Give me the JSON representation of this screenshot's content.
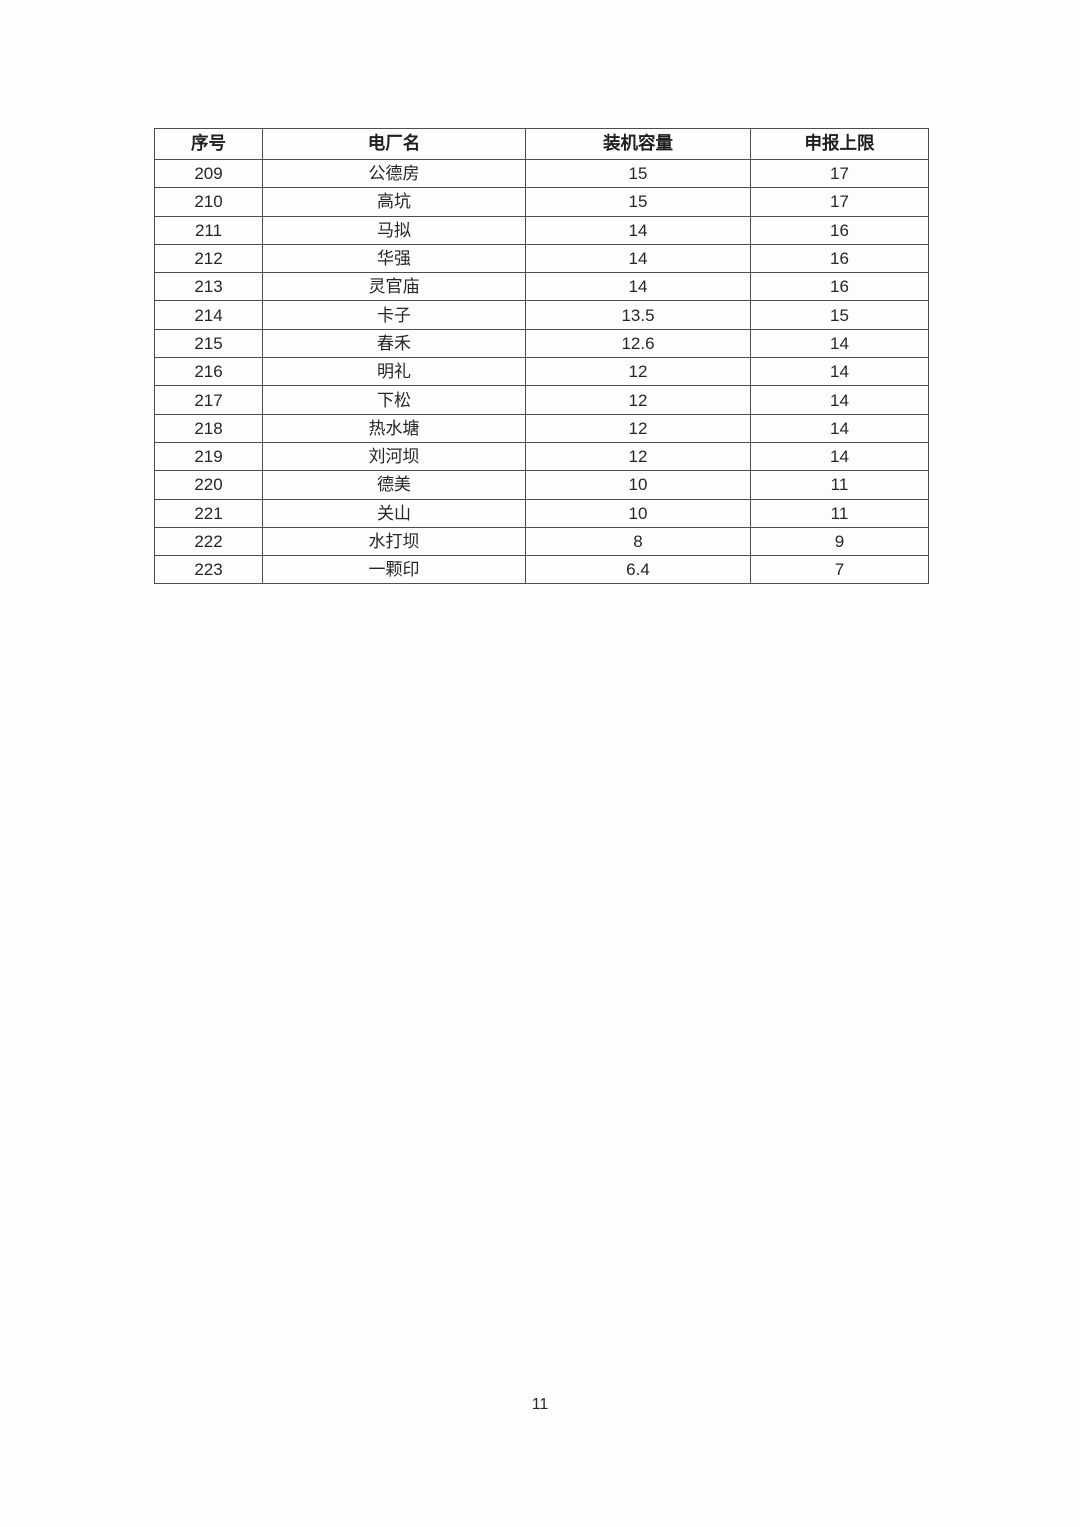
{
  "table": {
    "headers": [
      "序号",
      "电厂名",
      "装机容量",
      "申报上限"
    ],
    "rows": [
      [
        "209",
        "公德房",
        "15",
        "17"
      ],
      [
        "210",
        "高坑",
        "15",
        "17"
      ],
      [
        "211",
        "马拟",
        "14",
        "16"
      ],
      [
        "212",
        "华强",
        "14",
        "16"
      ],
      [
        "213",
        "灵官庙",
        "14",
        "16"
      ],
      [
        "214",
        "卡子",
        "13.5",
        "15"
      ],
      [
        "215",
        "春禾",
        "12.6",
        "14"
      ],
      [
        "216",
        "明礼",
        "12",
        "14"
      ],
      [
        "217",
        "下松",
        "12",
        "14"
      ],
      [
        "218",
        "热水塘",
        "12",
        "14"
      ],
      [
        "219",
        "刘河坝",
        "12",
        "14"
      ],
      [
        "220",
        "德美",
        "10",
        "11"
      ],
      [
        "221",
        "关山",
        "10",
        "11"
      ],
      [
        "222",
        "水打坝",
        "8",
        "9"
      ],
      [
        "223",
        "一颗印",
        "6.4",
        "7"
      ]
    ]
  },
  "page": {
    "number": "11"
  }
}
